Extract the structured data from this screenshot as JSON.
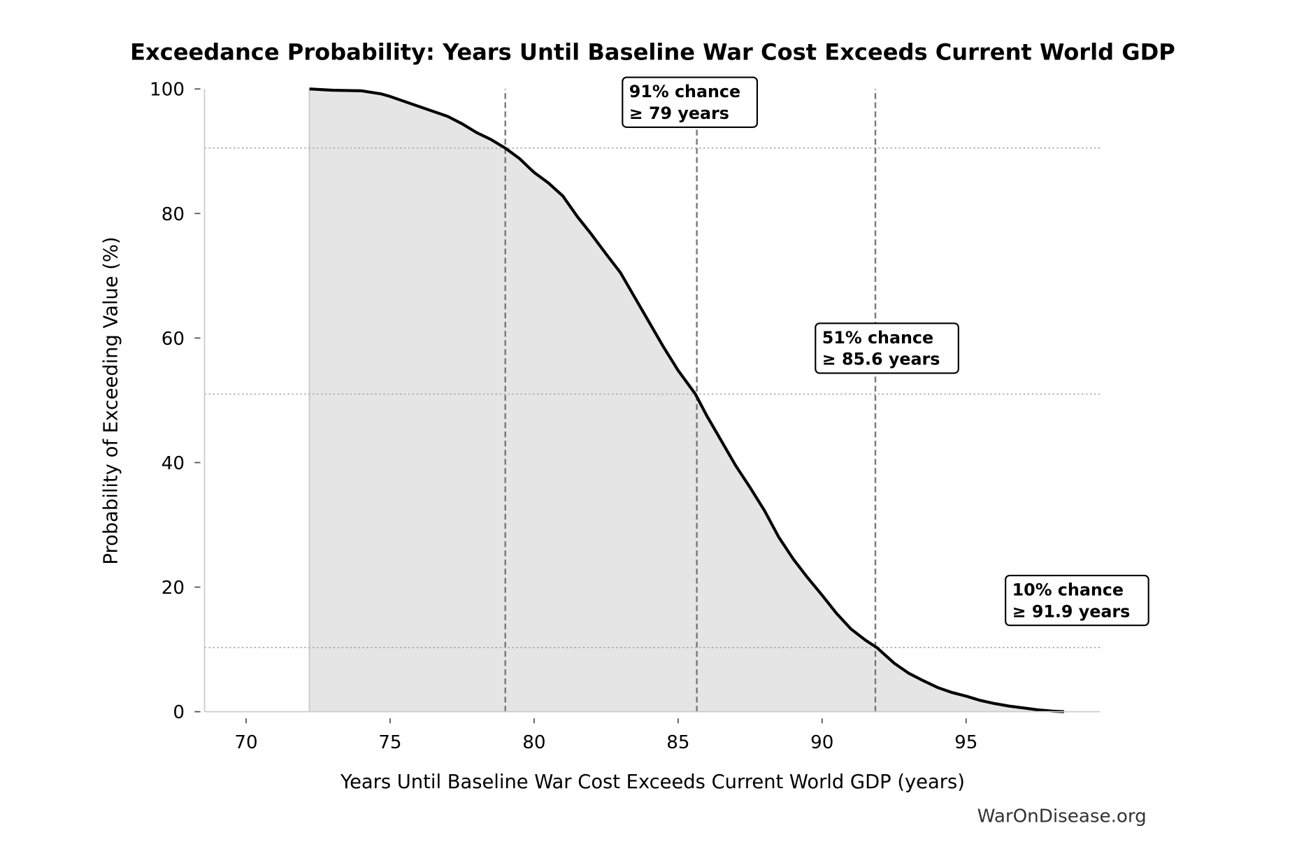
{
  "chart_data": {
    "type": "area",
    "title": "Exceedance Probability: Years Until Baseline War Cost Exceeds Current World GDP",
    "xlabel": "Years Until Baseline War Cost Exceeds Current World GDP (years)",
    "ylabel": "Probability of Exceeding Value (%)",
    "xlim": [
      68.5,
      99.6
    ],
    "ylim": [
      0,
      100
    ],
    "xticks": [
      70,
      75,
      80,
      85,
      90,
      95
    ],
    "yticks": [
      0,
      20,
      40,
      60,
      80,
      100
    ],
    "series": [
      {
        "name": "Exceedance probability",
        "x": [
          72.2,
          73,
          74,
          74.7,
          75,
          75.5,
          76,
          76.5,
          77,
          77.5,
          78,
          78.5,
          79,
          79.5,
          80,
          80.5,
          81,
          81.5,
          82,
          82.5,
          83,
          83.5,
          84,
          84.5,
          85,
          85.6,
          86,
          86.5,
          87,
          87.5,
          88,
          88.5,
          89,
          89.5,
          90,
          90.5,
          91,
          91.5,
          91.9,
          92.5,
          93,
          93.5,
          94,
          94.5,
          95,
          95.5,
          96,
          96.5,
          97,
          97.5,
          98,
          98.4
        ],
        "y": [
          100,
          99.8,
          99.7,
          99.2,
          98.8,
          98,
          97.2,
          96.4,
          95.6,
          94.4,
          93,
          91.9,
          90.5,
          88.8,
          86.6,
          84.9,
          82.8,
          79.5,
          76.6,
          73.5,
          70.5,
          66.5,
          62.5,
          58.5,
          54.8,
          51,
          47.5,
          43.5,
          39.5,
          36,
          32.3,
          28,
          24.5,
          21.5,
          18.7,
          15.8,
          13.3,
          11.5,
          10.3,
          7.8,
          6.2,
          5,
          3.9,
          3.1,
          2.5,
          1.8,
          1.3,
          0.9,
          0.6,
          0.3,
          0.1,
          0
        ]
      }
    ],
    "percentile_lines": [
      {
        "prob": 90.5,
        "years": 79.0
      },
      {
        "prob": 51,
        "years": 85.65
      },
      {
        "prob": 10.3,
        "years": 91.85
      }
    ],
    "annotations": [
      {
        "line1": "91% chance",
        "line2": "≥ 79 years",
        "x": 83.3,
        "y": 100
      },
      {
        "line1": "51% chance",
        "line2": "≥ 85.6 years",
        "x": 90.0,
        "y": 60.5
      },
      {
        "line1": "10% chance",
        "line2": "≥ 91.9 years",
        "x": 96.6,
        "y": 20
      }
    ],
    "grid": false,
    "watermark": "WarOnDisease.org",
    "colors": {
      "line": "#000000",
      "fill": "#e5e5e5",
      "ref": "#777777",
      "hgrid": "#aaaaaa"
    }
  }
}
